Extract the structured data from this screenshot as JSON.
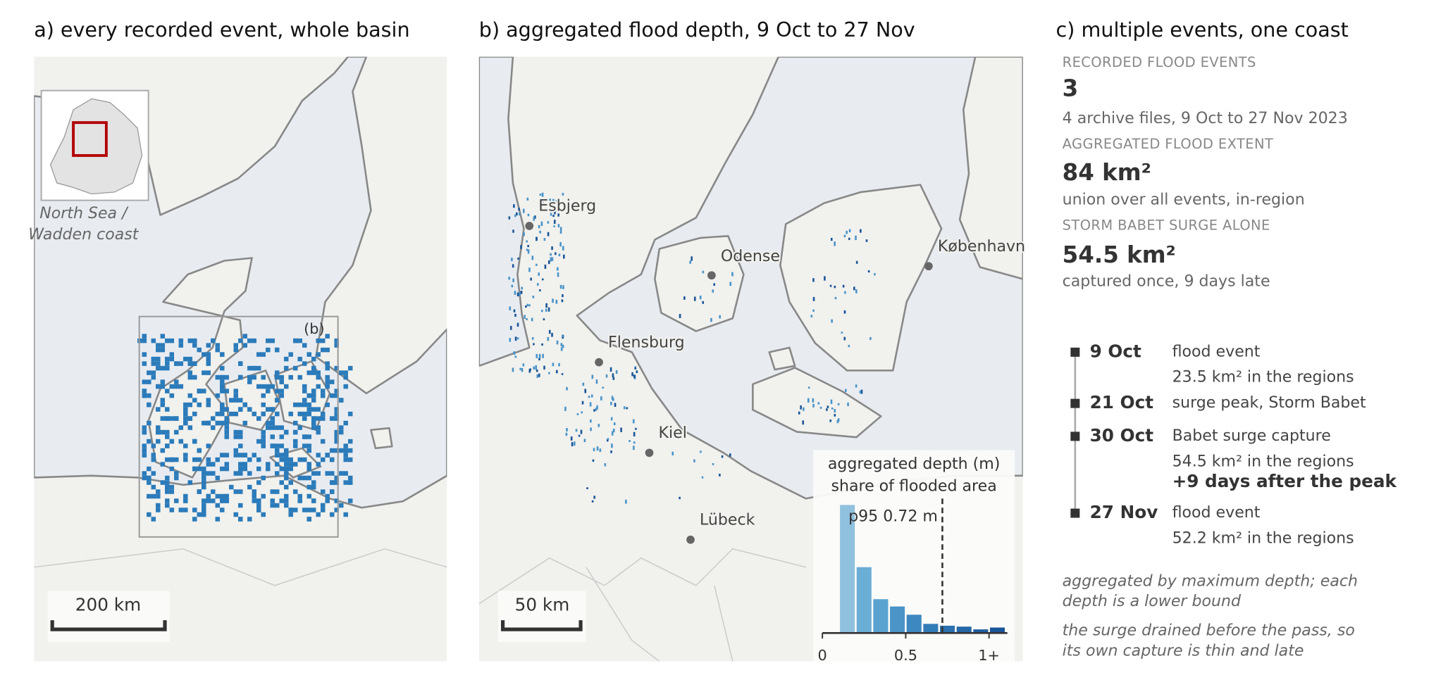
{
  "panel_a": {
    "title": "a) every recorded event, whole basin",
    "inset_caption": [
      "North Sea /",
      "Wadden coast"
    ],
    "box_label": "(b)",
    "scale_label": "200 km"
  },
  "panel_b": {
    "title": "b) aggregated flood depth, 9 Oct to 27 Nov",
    "cities": [
      "Esbjerg",
      "Odense",
      "København",
      "Flensburg",
      "Kiel",
      "Lübeck"
    ],
    "scale_label": "50 km",
    "histogram": {
      "title": [
        "aggregated depth (m)",
        "share of flooded area"
      ],
      "bins": [
        0.1,
        0.2,
        0.3,
        0.4,
        0.5,
        0.6,
        0.7,
        0.8,
        0.9,
        1.0,
        1.1
      ],
      "values": [
        42,
        21.6,
        11.1,
        8.7,
        6,
        3,
        2.4,
        2.1,
        1.2,
        1.8
      ],
      "colors": [
        "#8fc1de",
        "#6aaed6",
        "#5aa2d0",
        "#4a94c8",
        "#3d88c0",
        "#327cb8",
        "#2a70ae",
        "#2466a6",
        "#1f5e9e",
        "#1a5597"
      ],
      "xlim": [
        0,
        1.11
      ],
      "xticks": [
        0,
        0.5,
        {
          "value": 1,
          "label": "1+"
        }
      ],
      "p95": 0.72,
      "p95_label": "p95 0.72 m"
    }
  },
  "panel_c": {
    "title": "c) multiple events, one coast",
    "stats": [
      {
        "label": "RECORDED FLOOD EVENTS",
        "value": "3",
        "note": "4 archive files, 9 Oct to 27 Nov 2023",
        "color": "#333333"
      },
      {
        "label": "AGGREGATED FLOOD EXTENT",
        "value": "84 km²",
        "note": "union over all events, in-region",
        "color": "#2b7bba"
      },
      {
        "label": "STORM BABET SURGE ALONE",
        "value": "54.5 km²",
        "note": "captured once, 9 days late",
        "color": "#2b7bba"
      }
    ],
    "timeline": [
      {
        "date": "9 Oct",
        "lines": [
          "flood event",
          "23.5 km² in the regions"
        ]
      },
      {
        "date": "21 Oct",
        "lines": [
          "surge peak, Storm Babet"
        ]
      },
      {
        "date": "30 Oct",
        "lines": [
          "Babet surge capture",
          "54.5 km² in the regions"
        ],
        "emphasis": "+9 days after the peak"
      },
      {
        "date": "27 Nov",
        "lines": [
          "flood event",
          "52.2 km² in the regions"
        ]
      }
    ],
    "notes": [
      [
        "aggregated by maximum depth; each",
        "depth is a lower bound"
      ],
      [
        "the surge drained before the pass, so",
        "its own capture is thin and late"
      ]
    ]
  }
}
